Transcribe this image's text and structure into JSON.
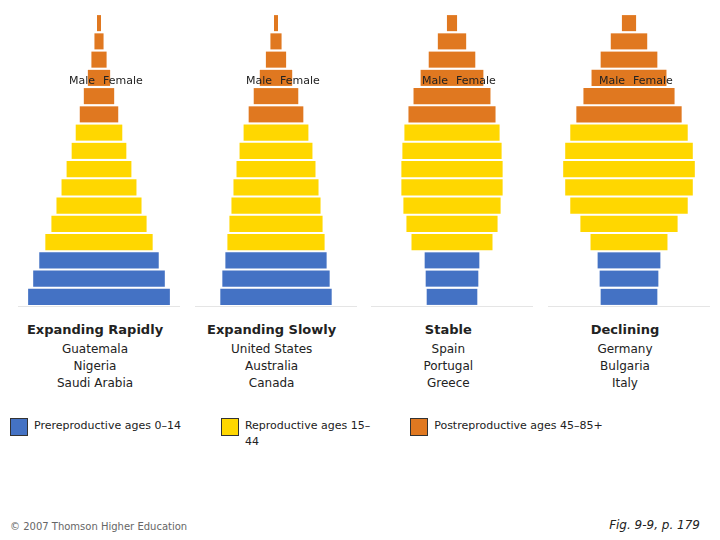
{
  "chart_data": [
    {
      "type": "bar",
      "orientation": "horizontal",
      "stacked": true,
      "grid": false,
      "tick_labels": false,
      "title": "Expanding Rapidly",
      "subtitle": "Guatemala\nNigeria\nSaudi Arabia",
      "categories": [
        null,
        null,
        null,
        null,
        null,
        null,
        null,
        null,
        null,
        null,
        null,
        null,
        null,
        null,
        null,
        null
      ],
      "xlim": [
        -8,
        8
      ],
      "series": [
        {
          "name": "Male",
          "values": [
            -7.0,
            -6.5,
            -5.9,
            -5.3,
            -4.7,
            -4.2,
            -3.7,
            -3.2,
            -2.7,
            -2.3,
            -1.9,
            -1.5,
            -1.1,
            -0.75,
            -0.45,
            -0.2
          ],
          "colors": [
            "#4472C4",
            "#4472C4",
            "#4472C4",
            "#FFD700",
            "#FFD700",
            "#FFD700",
            "#FFD700",
            "#FFD700",
            "#FFD700",
            "#FFD700",
            "#E07820",
            "#E07820",
            "#E07820",
            "#E07820",
            "#E07820",
            "#E07820"
          ]
        },
        {
          "name": "Female",
          "values": [
            7.0,
            6.5,
            5.9,
            5.3,
            4.7,
            4.2,
            3.7,
            3.2,
            2.7,
            2.3,
            1.9,
            1.5,
            1.1,
            0.75,
            0.45,
            0.2
          ],
          "colors": [
            "#4472C4",
            "#4472C4",
            "#4472C4",
            "#FFD700",
            "#FFD700",
            "#FFD700",
            "#FFD700",
            "#FFD700",
            "#FFD700",
            "#FFD700",
            "#E07820",
            "#E07820",
            "#E07820",
            "#E07820",
            "#E07820",
            "#E07820"
          ]
        }
      ]
    },
    {
      "type": "bar",
      "orientation": "horizontal",
      "stacked": true,
      "grid": false,
      "tick_labels": false,
      "title": "Expanding Slowly",
      "subtitle": "United States\nAustralia\nCanada",
      "categories": [
        null,
        null,
        null,
        null,
        null,
        null,
        null,
        null,
        null,
        null,
        null,
        null,
        null,
        null,
        null,
        null
      ],
      "xlim": [
        -8,
        8
      ],
      "series": [
        {
          "name": "Male",
          "values": [
            -5.5,
            -5.3,
            -5.0,
            -4.8,
            -4.6,
            -4.4,
            -4.2,
            -3.9,
            -3.6,
            -3.2,
            -2.7,
            -2.2,
            -1.6,
            -1.0,
            -0.55,
            -0.2
          ],
          "colors": [
            "#4472C4",
            "#4472C4",
            "#4472C4",
            "#FFD700",
            "#FFD700",
            "#FFD700",
            "#FFD700",
            "#FFD700",
            "#FFD700",
            "#FFD700",
            "#E07820",
            "#E07820",
            "#E07820",
            "#E07820",
            "#E07820",
            "#E07820"
          ]
        },
        {
          "name": "Female",
          "values": [
            5.5,
            5.3,
            5.0,
            4.8,
            4.6,
            4.4,
            4.2,
            3.9,
            3.6,
            3.2,
            2.7,
            2.2,
            1.6,
            1.0,
            0.55,
            0.2
          ],
          "colors": [
            "#4472C4",
            "#4472C4",
            "#4472C4",
            "#FFD700",
            "#FFD700",
            "#FFD700",
            "#FFD700",
            "#FFD700",
            "#FFD700",
            "#FFD700",
            "#E07820",
            "#E07820",
            "#E07820",
            "#E07820",
            "#E07820",
            "#E07820"
          ]
        }
      ]
    },
    {
      "type": "bar",
      "orientation": "horizontal",
      "stacked": true,
      "grid": false,
      "tick_labels": false,
      "title": "Stable",
      "subtitle": "Spain\nPortugal\nGreece",
      "categories": [
        null,
        null,
        null,
        null,
        null,
        null,
        null,
        null,
        null,
        null,
        null,
        null,
        null,
        null,
        null,
        null
      ],
      "xlim": [
        -8,
        8
      ],
      "series": [
        {
          "name": "Male",
          "values": [
            -2.5,
            -2.6,
            -2.7,
            -4.0,
            -4.5,
            -4.8,
            -5.0,
            -5.0,
            -4.9,
            -4.7,
            -4.3,
            -3.8,
            -3.1,
            -2.3,
            -1.4,
            -0.5
          ],
          "colors": [
            "#4472C4",
            "#4472C4",
            "#4472C4",
            "#FFD700",
            "#FFD700",
            "#FFD700",
            "#FFD700",
            "#FFD700",
            "#FFD700",
            "#FFD700",
            "#E07820",
            "#E07820",
            "#E07820",
            "#E07820",
            "#E07820",
            "#E07820"
          ]
        },
        {
          "name": "Female",
          "values": [
            2.5,
            2.6,
            2.7,
            4.0,
            4.5,
            4.8,
            5.0,
            5.0,
            4.9,
            4.7,
            4.3,
            3.8,
            3.1,
            2.3,
            1.4,
            0.5
          ],
          "colors": [
            "#4472C4",
            "#4472C4",
            "#4472C4",
            "#FFD700",
            "#FFD700",
            "#FFD700",
            "#FFD700",
            "#FFD700",
            "#FFD700",
            "#FFD700",
            "#E07820",
            "#E07820",
            "#E07820",
            "#E07820",
            "#E07820",
            "#E07820"
          ]
        }
      ]
    },
    {
      "type": "bar",
      "orientation": "horizontal",
      "stacked": true,
      "grid": false,
      "tick_labels": false,
      "title": "Declining",
      "subtitle": "Germany\nBulgaria\nItaly",
      "categories": [
        null,
        null,
        null,
        null,
        null,
        null,
        null,
        null,
        null,
        null,
        null,
        null,
        null,
        null,
        null,
        null
      ],
      "xlim": [
        -8,
        8
      ],
      "series": [
        {
          "name": "Male",
          "values": [
            -2.8,
            -2.9,
            -3.1,
            -3.8,
            -4.8,
            -5.8,
            -6.3,
            -6.5,
            -6.3,
            -5.8,
            -5.2,
            -4.5,
            -3.7,
            -2.8,
            -1.8,
            -0.7
          ],
          "colors": [
            "#4472C4",
            "#4472C4",
            "#4472C4",
            "#FFD700",
            "#FFD700",
            "#FFD700",
            "#FFD700",
            "#FFD700",
            "#FFD700",
            "#FFD700",
            "#E07820",
            "#E07820",
            "#E07820",
            "#E07820",
            "#E07820",
            "#E07820"
          ]
        },
        {
          "name": "Female",
          "values": [
            2.8,
            2.9,
            3.1,
            3.8,
            4.8,
            5.8,
            6.3,
            6.5,
            6.3,
            5.8,
            5.2,
            4.5,
            3.7,
            2.8,
            1.8,
            0.7
          ],
          "colors": [
            "#4472C4",
            "#4472C4",
            "#4472C4",
            "#FFD700",
            "#FFD700",
            "#FFD700",
            "#FFD700",
            "#FFD700",
            "#FFD700",
            "#FFD700",
            "#E07820",
            "#E07820",
            "#E07820",
            "#E07820",
            "#E07820",
            "#E07820"
          ]
        }
      ]
    }
  ],
  "annotations": [
    {
      "text": "Prereproductive ages 0–14",
      "color": "#4472C4"
    },
    {
      "text": "Reproductive ages 15–\n44",
      "color": "#FFD700"
    },
    {
      "text": "Postreproductive ages 45–85+",
      "color": "#E07820"
    },
    {
      "text": "© 2007 Thomson Higher Education"
    },
    {
      "text": "Fig. 9-9, p. 179"
    }
  ]
}
